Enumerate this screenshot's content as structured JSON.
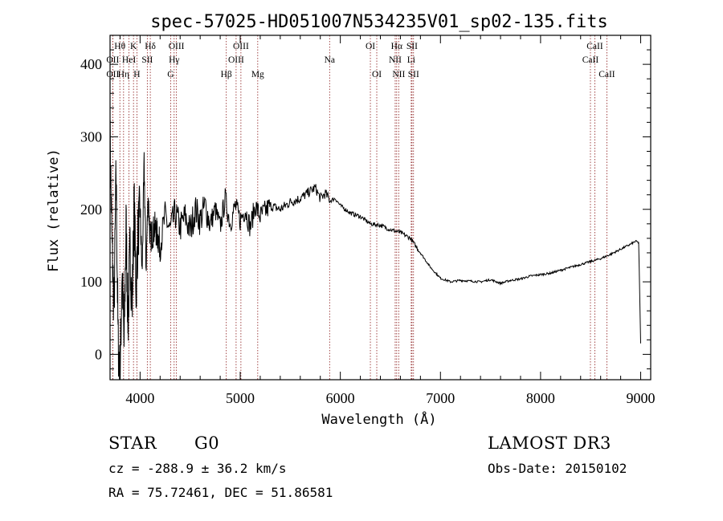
{
  "chart_data": {
    "type": "line",
    "title": "spec-57025-HD051007N534235V01_sp02-135.fits",
    "xlabel": "Wavelength (Å)",
    "ylabel": "Flux (relative)",
    "xlim": [
      3700,
      9100
    ],
    "ylim": [
      -35,
      440
    ],
    "xticks": [
      4000,
      5000,
      6000,
      7000,
      8000,
      9000
    ],
    "yticks": [
      0,
      100,
      200,
      300,
      400
    ],
    "series": [
      {
        "name": "flux",
        "color": "#000000",
        "x": [
          3700,
          3720,
          3740,
          3760,
          3780,
          3800,
          3820,
          3840,
          3860,
          3880,
          3900,
          3920,
          3940,
          3960,
          3980,
          4000,
          4020,
          4040,
          4060,
          4080,
          4100,
          4150,
          4200,
          4250,
          4300,
          4350,
          4400,
          4450,
          4500,
          4550,
          4600,
          4650,
          4700,
          4750,
          4800,
          4850,
          4900,
          4950,
          5000,
          5050,
          5100,
          5150,
          5200,
          5300,
          5400,
          5500,
          5600,
          5700,
          5750,
          5800,
          5850,
          5900,
          5950,
          6000,
          6100,
          6200,
          6300,
          6400,
          6500,
          6600,
          6700,
          6800,
          6900,
          7000,
          7100,
          7200,
          7300,
          7400,
          7500,
          7600,
          7700,
          7800,
          7900,
          8000,
          8100,
          8200,
          8300,
          8400,
          8500,
          8600,
          8700,
          8800,
          8900,
          8950,
          8980,
          9000
        ],
        "y": [
          300,
          150,
          60,
          250,
          20,
          -35,
          120,
          10,
          180,
          40,
          150,
          60,
          210,
          90,
          170,
          200,
          110,
          260,
          120,
          220,
          160,
          175,
          150,
          190,
          170,
          195,
          175,
          190,
          170,
          200,
          185,
          205,
          180,
          200,
          175,
          215,
          180,
          205,
          185,
          200,
          175,
          205,
          190,
          205,
          200,
          210,
          215,
          225,
          230,
          215,
          222,
          212,
          215,
          205,
          195,
          190,
          180,
          178,
          172,
          168,
          160,
          140,
          120,
          105,
          100,
          102,
          101,
          100,
          103,
          98,
          102,
          104,
          108,
          110,
          112,
          116,
          120,
          124,
          128,
          132,
          138,
          145,
          152,
          156,
          154,
          15
        ]
      }
    ],
    "spectral_lines": [
      {
        "label": "Hθ",
        "wl": 3798,
        "row": 0
      },
      {
        "label": "K",
        "wl": 3934,
        "row": 0
      },
      {
        "label": "Hδ",
        "wl": 4102,
        "row": 0
      },
      {
        "label": "OIII",
        "wl": 4363,
        "row": 0
      },
      {
        "label": "OIII",
        "wl": 5007,
        "row": 0
      },
      {
        "label": "OI",
        "wl": 6300,
        "row": 0
      },
      {
        "label": "Hα",
        "wl": 6563,
        "row": 0
      },
      {
        "label": "SII",
        "wl": 6716,
        "row": 0
      },
      {
        "label": "CaII",
        "wl": 8542,
        "row": 0
      },
      {
        "label": "OII",
        "wl": 3727,
        "row": 1
      },
      {
        "label": "HeI",
        "wl": 3889,
        "row": 1
      },
      {
        "label": "SII",
        "wl": 4072,
        "row": 1
      },
      {
        "label": "Hγ",
        "wl": 4340,
        "row": 1
      },
      {
        "label": "OIII",
        "wl": 4959,
        "row": 1
      },
      {
        "label": "Na",
        "wl": 5893,
        "row": 1
      },
      {
        "label": "NII",
        "wl": 6548,
        "row": 1
      },
      {
        "label": "Li",
        "wl": 6708,
        "row": 1
      },
      {
        "label": "CaII",
        "wl": 8498,
        "row": 1
      },
      {
        "label": "OII",
        "wl": 3727,
        "row": 2
      },
      {
        "label": "Hη",
        "wl": 3835,
        "row": 2
      },
      {
        "label": "H",
        "wl": 3968,
        "row": 2
      },
      {
        "label": "G",
        "wl": 4305,
        "row": 2
      },
      {
        "label": "Hβ",
        "wl": 4861,
        "row": 2
      },
      {
        "label": "Mg",
        "wl": 5175,
        "row": 2
      },
      {
        "label": "OI",
        "wl": 6364,
        "row": 2
      },
      {
        "label": "NII",
        "wl": 6583,
        "row": 2
      },
      {
        "label": "SII",
        "wl": 6731,
        "row": 2
      },
      {
        "label": "CaII",
        "wl": 8662,
        "row": 2
      }
    ],
    "line_color": "#8b1a1a"
  },
  "info": {
    "object_class": "STAR",
    "subclass": "G0",
    "survey": "LAMOST DR3",
    "cz": "cz = -288.9 ± 36.2 km/s",
    "obs_date": "Obs-Date: 20150102",
    "coords": "RA =  75.72461, DEC =  51.86581"
  }
}
